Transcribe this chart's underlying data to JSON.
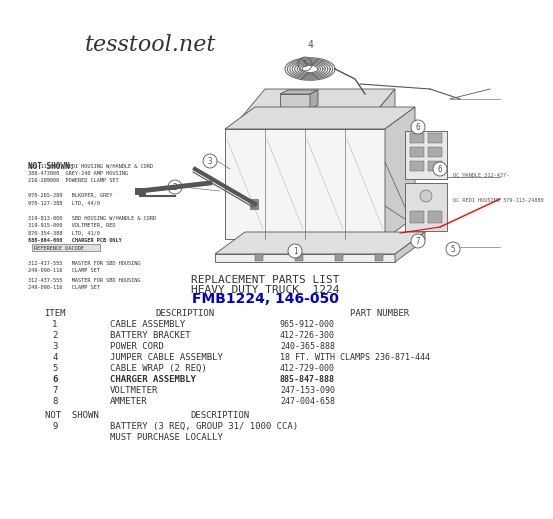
{
  "bg_color": "#ffffff",
  "watermark": "tesstool.net",
  "watermark_color": "#333333",
  "watermark_fontsize": 16,
  "title1": "REPLACEMENT PARTS LIST",
  "title2": "HEAVY DUTY TRUCK  1224",
  "title3": "FMB1224, 146-050",
  "title3_color": "#0000cc",
  "title_fontsize": 8,
  "title3_fontsize": 10,
  "header_item": "ITEM",
  "header_desc": "DESCRIPTION",
  "header_part": "PART NUMBER",
  "items": [
    {
      "num": "1",
      "desc": "CABLE ASSEMBLY",
      "part": "965-912-000"
    },
    {
      "num": "2",
      "desc": "BATTERY BRACKET",
      "part": "412-726-300"
    },
    {
      "num": "3",
      "desc": "POWER CORD",
      "part": "240-365-888"
    },
    {
      "num": "4",
      "desc": "JUMPER CABLE ASSEMBLY",
      "part": "18 FT. WITH CLAMPS 236-871-444"
    },
    {
      "num": "5",
      "desc": "CABLE WRAP (2 REQ)",
      "part": "412-729-000"
    },
    {
      "num": "6",
      "desc": "CHARGER ASSEMBLY",
      "part": "885-847-888"
    },
    {
      "num": "7",
      "desc": "VOLTMETER",
      "part": "247-153-090"
    },
    {
      "num": "8",
      "desc": "AMMETER",
      "part": "247-004-658"
    }
  ],
  "not_shown_item_num": "9",
  "not_shown_desc1": "BATTERY (3 REQ, GROUP 31/ 1000 CCA)",
  "not_shown_desc2": "MUST PURCHASE LOCALLY",
  "not_shown_left_title": "NOT SHOWN:",
  "not_shown_left_lines": [
    [
      "379-113080  REDI HOUSING W/HANDLE & CORD",
      false
    ],
    [
      "388-473000  GREY-240 AMP HOUSING",
      false
    ],
    [
      "216-289000  POWERED CLAMP SET",
      false
    ],
    [
      "",
      false
    ],
    [
      "970-265-289   BLKOPER, GREY",
      false
    ],
    [
      "970-127-388   LTD, 44/0",
      false
    ],
    [
      "",
      false
    ],
    [
      "319-813-000   SBD HOUSING W/HANDLE & CORD",
      false
    ],
    [
      "319-915-000   VOLTMETER, RED",
      false
    ],
    [
      "870-354-388   LTD, 41/0",
      false
    ],
    [
      "886-664-000   CHARGER PCB ONLY",
      true
    ],
    [
      "  REFERENCE DACODE",
      false
    ],
    [
      "",
      false
    ],
    [
      "312-437-555   MASTER FOR SBD HOUSING",
      false
    ],
    [
      "249-090-116   CLAMP SET",
      false
    ]
  ],
  "qc_handle_label": "QC HANDLE 312-437-",
  "qc_housing_label": "QC REDI HOUSING 379-113-24880",
  "diagram_font": "monospace",
  "table_fontsize": 6.5,
  "small_fontsize": 4.5,
  "gray": "#555555",
  "dark": "#333333",
  "light_gray": "#aaaaaa",
  "mid_gray": "#888888"
}
